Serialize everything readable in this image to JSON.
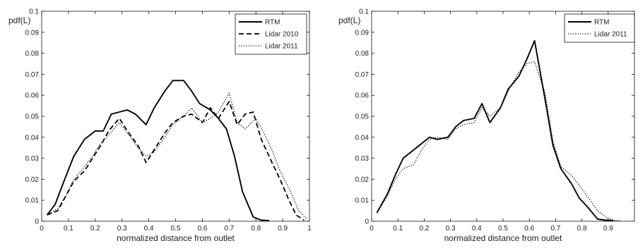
{
  "chart_data": [
    {
      "type": "line",
      "title": "",
      "xlabel": "normalized distance from outlet",
      "ylabel": "pdf(L)",
      "xlim": [
        0,
        1
      ],
      "ylim": [
        0,
        0.1
      ],
      "xticks": [
        "0",
        "0.1",
        "0.2",
        "0.3",
        "0.4",
        "0.5",
        "0.6",
        "0.7",
        "0.8",
        "0.9",
        "1"
      ],
      "yticks": [
        "0",
        "0.01",
        "0.02",
        "0.03",
        "0.04",
        "0.05",
        "0.06",
        "0.07",
        "0.08",
        "0.09",
        "0.1"
      ],
      "grid": false,
      "legend_position": "top-right",
      "series": [
        {
          "name": "RTM",
          "style": "solid",
          "color": "#000000",
          "x": [
            0.02,
            0.05,
            0.08,
            0.12,
            0.16,
            0.2,
            0.23,
            0.26,
            0.29,
            0.32,
            0.35,
            0.39,
            0.42,
            0.46,
            0.49,
            0.53,
            0.56,
            0.59,
            0.63,
            0.66,
            0.69,
            0.72,
            0.75,
            0.79,
            0.82,
            0.85
          ],
          "y": [
            0.003,
            0.008,
            0.018,
            0.031,
            0.039,
            0.043,
            0.043,
            0.051,
            0.052,
            0.053,
            0.051,
            0.046,
            0.054,
            0.062,
            0.067,
            0.067,
            0.062,
            0.056,
            0.053,
            0.049,
            0.044,
            0.031,
            0.014,
            0.002,
            0.0005,
            0.0003
          ]
        },
        {
          "name": "Lidar 2010",
          "style": "dashed",
          "color": "#000000",
          "x": [
            0.02,
            0.06,
            0.09,
            0.12,
            0.16,
            0.19,
            0.22,
            0.25,
            0.29,
            0.32,
            0.36,
            0.39,
            0.42,
            0.46,
            0.49,
            0.53,
            0.56,
            0.6,
            0.63,
            0.66,
            0.7,
            0.73,
            0.76,
            0.79,
            0.82,
            0.86,
            0.89,
            0.92,
            0.95,
            0.98
          ],
          "y": [
            0.003,
            0.005,
            0.012,
            0.019,
            0.024,
            0.03,
            0.036,
            0.043,
            0.049,
            0.043,
            0.036,
            0.028,
            0.034,
            0.042,
            0.047,
            0.05,
            0.051,
            0.047,
            0.054,
            0.049,
            0.057,
            0.046,
            0.051,
            0.052,
            0.039,
            0.028,
            0.02,
            0.011,
            0.003,
            0.0005
          ]
        },
        {
          "name": "Lidar 2011",
          "style": "dotted",
          "color": "#000000",
          "x": [
            0.02,
            0.06,
            0.09,
            0.12,
            0.16,
            0.19,
            0.22,
            0.25,
            0.29,
            0.32,
            0.36,
            0.39,
            0.42,
            0.46,
            0.49,
            0.53,
            0.56,
            0.6,
            0.63,
            0.66,
            0.7,
            0.73,
            0.76,
            0.8,
            0.83,
            0.86,
            0.89,
            0.93,
            0.96,
            0.99
          ],
          "y": [
            0.003,
            0.006,
            0.012,
            0.02,
            0.026,
            0.031,
            0.037,
            0.041,
            0.047,
            0.042,
            0.035,
            0.031,
            0.033,
            0.04,
            0.046,
            0.05,
            0.054,
            0.047,
            0.049,
            0.052,
            0.061,
            0.047,
            0.044,
            0.049,
            0.042,
            0.034,
            0.024,
            0.014,
            0.005,
            0.001
          ]
        }
      ]
    },
    {
      "type": "line",
      "title": "",
      "xlabel": "normalized distance from outlet",
      "ylabel": "pdf(L)",
      "xlim": [
        0,
        1
      ],
      "ylim": [
        0,
        0.1
      ],
      "xticks": [
        "0",
        "0.1",
        "0.2",
        "0.3",
        "0.4",
        "0.5",
        "0.6",
        "0.7",
        "0.8",
        "0.9"
      ],
      "yticks": [
        "0",
        "0.01",
        "0.02",
        "0.03",
        "0.04",
        "0.05",
        "0.06",
        "0.07",
        "0.08",
        "0.09",
        "0.1"
      ],
      "grid": false,
      "legend_position": "top-right",
      "series": [
        {
          "name": "RTM",
          "style": "solid",
          "color": "#000000",
          "x": [
            0.02,
            0.06,
            0.09,
            0.12,
            0.16,
            0.19,
            0.22,
            0.25,
            0.29,
            0.32,
            0.35,
            0.39,
            0.42,
            0.45,
            0.49,
            0.52,
            0.56,
            0.59,
            0.62,
            0.66,
            0.69,
            0.72,
            0.76,
            0.79,
            0.82,
            0.86,
            0.89,
            0.92
          ],
          "y": [
            0.004,
            0.013,
            0.022,
            0.03,
            0.034,
            0.037,
            0.04,
            0.039,
            0.04,
            0.045,
            0.048,
            0.049,
            0.056,
            0.047,
            0.054,
            0.063,
            0.069,
            0.077,
            0.086,
            0.058,
            0.036,
            0.025,
            0.018,
            0.011,
            0.007,
            0.001,
            0.0005,
            0.0003
          ]
        },
        {
          "name": "Lidar 2011",
          "style": "dotted",
          "color": "#000000",
          "x": [
            0.02,
            0.06,
            0.09,
            0.12,
            0.16,
            0.19,
            0.22,
            0.25,
            0.29,
            0.32,
            0.35,
            0.39,
            0.42,
            0.45,
            0.49,
            0.52,
            0.56,
            0.59,
            0.62,
            0.66,
            0.69,
            0.72,
            0.76,
            0.79,
            0.82,
            0.86,
            0.89,
            0.92,
            0.95
          ],
          "y": [
            0.004,
            0.012,
            0.02,
            0.025,
            0.027,
            0.034,
            0.039,
            0.04,
            0.039,
            0.044,
            0.046,
            0.047,
            0.054,
            0.05,
            0.054,
            0.062,
            0.071,
            0.075,
            0.076,
            0.061,
            0.038,
            0.026,
            0.022,
            0.017,
            0.012,
            0.005,
            0.002,
            0.0005,
            0.0002
          ]
        }
      ]
    }
  ]
}
